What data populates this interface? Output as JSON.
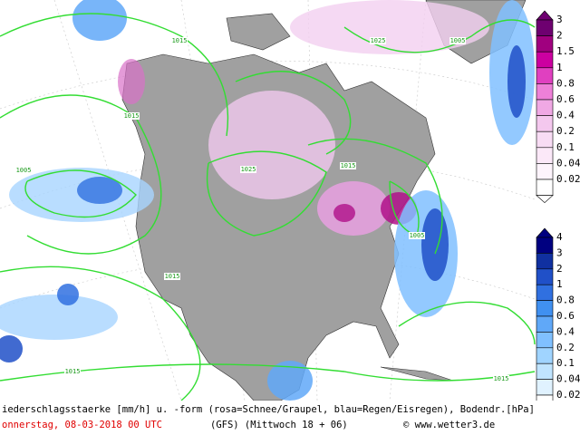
{
  "legend_snow": {
    "labels": [
      "3",
      "2",
      "1.5",
      "1",
      "0.8",
      "0.6",
      "0.4",
      "0.2",
      "0.1",
      "0.04",
      "0.02"
    ]
  },
  "legend_rain": {
    "labels": [
      "4",
      "3",
      "2",
      "1",
      "0.8",
      "0.6",
      "0.4",
      "0.2",
      "0.1",
      "0.04",
      "0.02"
    ]
  },
  "isobar_labels": [
    "1015",
    "1025",
    "1005",
    "1015",
    "1015",
    "1015",
    "1025",
    "1015",
    "1005",
    "1005",
    "1015"
  ],
  "footer": {
    "description": "iederschlagsstaerke [mm/h] u. -form (rosa=Schnee/Graupel, blau=Regen/Eisregen), Bodendr.[hPa]",
    "date": "onnerstag, 08-03-2018  00 UTC",
    "model": "(GFS)  (Mittwoch 18 + 06)",
    "credit": "© www.wetter3.de"
  }
}
